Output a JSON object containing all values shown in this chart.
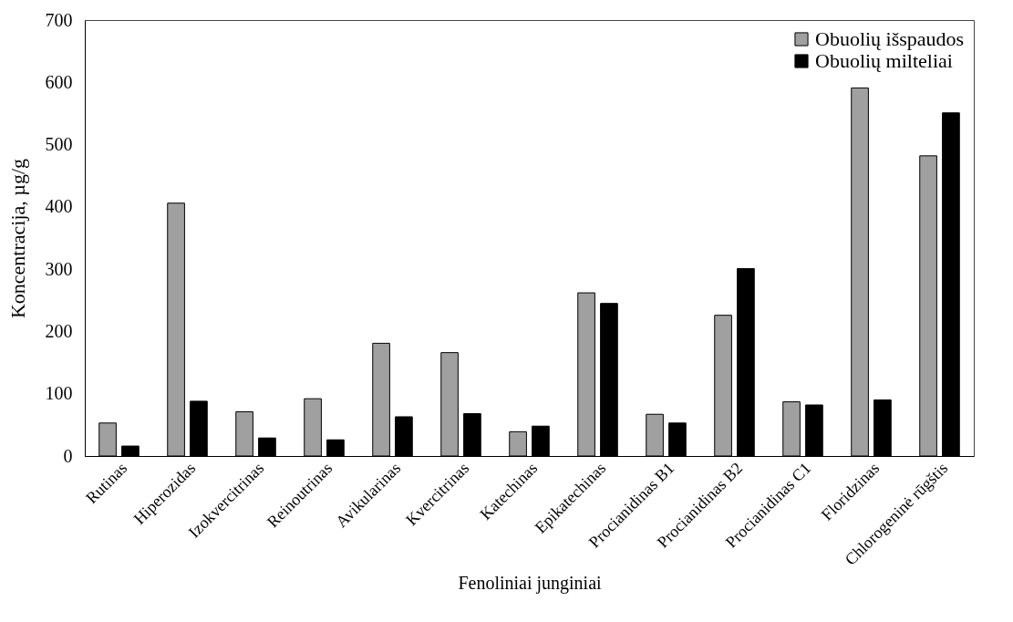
{
  "chart_data": {
    "type": "bar",
    "xlabel": "Fenoliniai junginiai",
    "ylabel": "Koncentracija,  µg/g",
    "categories": [
      "Rutinas",
      "Hiperozidas",
      "Izokvercitrinas",
      "Reinoutrinas",
      "Avikularinas",
      "Kvercitrinas",
      "Katechinas",
      "Epikatechinas",
      "Procianidinas B1",
      "Procianidinas B2",
      "Procianidinas C1",
      "Floridzinas",
      "Chlorogeninė rūgštis"
    ],
    "series": [
      {
        "name": "Obuolių išspaudos",
        "color": "#a0a0a0",
        "values": [
          53,
          406,
          71,
          92,
          181,
          166,
          39,
          262,
          67,
          226,
          87,
          591,
          482
        ]
      },
      {
        "name": "Obuolių milteliai",
        "color": "#000000",
        "values": [
          16,
          88,
          29,
          26,
          63,
          68,
          48,
          245,
          53,
          301,
          82,
          90,
          551
        ]
      }
    ],
    "ylim": [
      0,
      700
    ],
    "yticks": [
      0,
      100,
      200,
      300,
      400,
      500,
      600,
      700
    ],
    "grid": false,
    "legend": "top right"
  }
}
